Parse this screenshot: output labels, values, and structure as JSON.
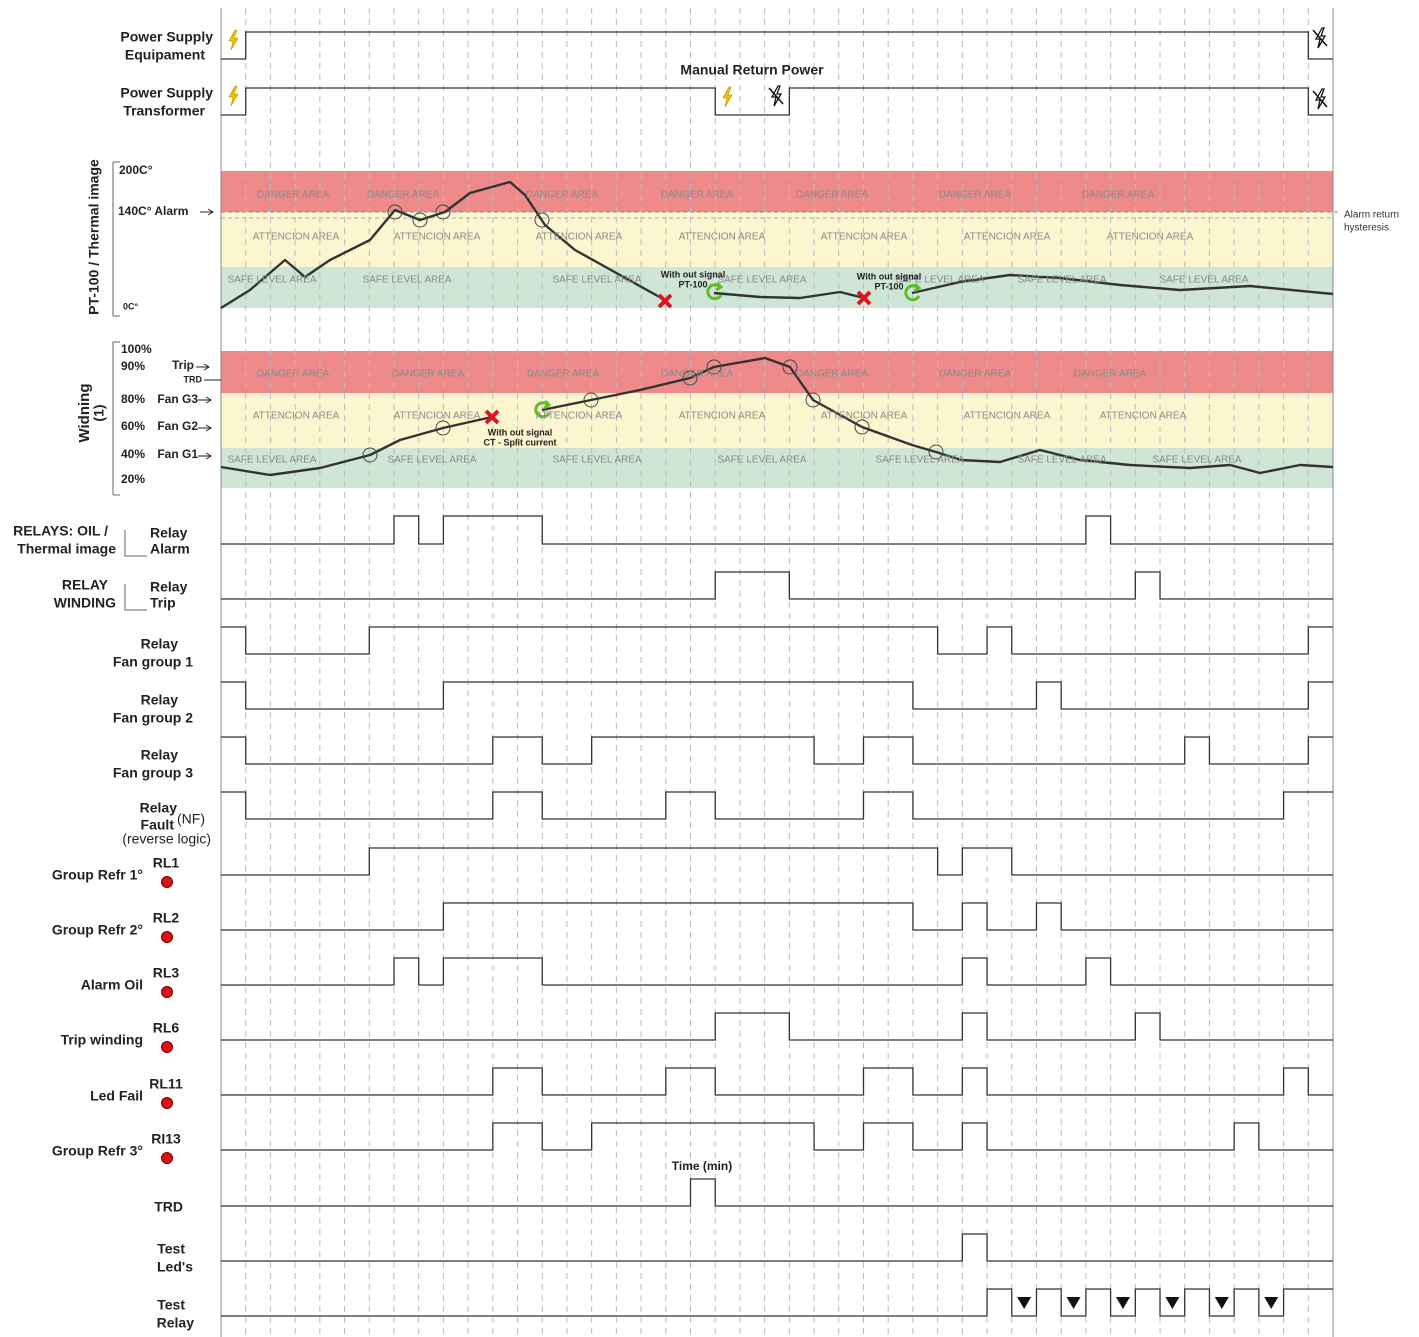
{
  "power": [
    {
      "label": [
        "Power Supply",
        "Equipament"
      ]
    },
    {
      "label": [
        "Power Supply",
        "Transformer"
      ]
    }
  ],
  "manual_return": "Manual Return Power",
  "areas": {
    "danger": "DANGER AREA",
    "attention": "ATTENCION AREA",
    "safe": "SAFE LEVEL AREA"
  },
  "thermal": {
    "axis_title": "PT-100 / Thermal image",
    "top": "200C°",
    "alarm": "140C° Alarm",
    "bottom": "0C°",
    "hysteresis": [
      "Alarm return",
      "hysteresis"
    ],
    "signal_loss": [
      "With out signal",
      "PT-100"
    ]
  },
  "winding": {
    "axis_title": [
      "Widning",
      "(1)"
    ],
    "levels": [
      "100%",
      "90%",
      "80%",
      "60%",
      "40%",
      "20%"
    ],
    "marks": [
      "Trip",
      "Fan G3",
      "Fan G2",
      "Fan G1"
    ],
    "trd": "TRD",
    "signal_loss": [
      "With out signal",
      "CT - Split current"
    ]
  },
  "relay_groups": [
    {
      "label": [
        "RELAYS: OIL /",
        "Thermal  image"
      ],
      "relay": [
        "Relay",
        "Alarm"
      ]
    },
    {
      "label": [
        "RELAY",
        "WINDING"
      ],
      "relay": [
        "Relay",
        "Trip"
      ]
    }
  ],
  "relays": [
    [
      "Relay",
      "Fan group 1"
    ],
    [
      "Relay",
      "Fan group 2"
    ],
    [
      "Relay",
      "Fan group 3"
    ]
  ],
  "fault": {
    "label": [
      "Relay",
      "Fault"
    ],
    "note": "(NF)",
    "logic": "(reverse logic)"
  },
  "outputs": [
    {
      "name": "Group Refr 1°",
      "code": "RL1"
    },
    {
      "name": "Group Refr 2°",
      "code": "RL2"
    },
    {
      "name": "Alarm Oil",
      "code": "RL3"
    },
    {
      "name": "Trip winding",
      "code": "RL6"
    },
    {
      "name": "Led Fail",
      "code": "RL11"
    },
    {
      "name": "Group Refr 3°",
      "code": "RI13"
    }
  ],
  "time_label": "Time (min)",
  "signals": [
    {
      "label": [
        "TRD"
      ]
    },
    {
      "label": [
        "Test",
        "Led's"
      ]
    },
    {
      "label": [
        "Test",
        "Relay"
      ]
    }
  ]
}
